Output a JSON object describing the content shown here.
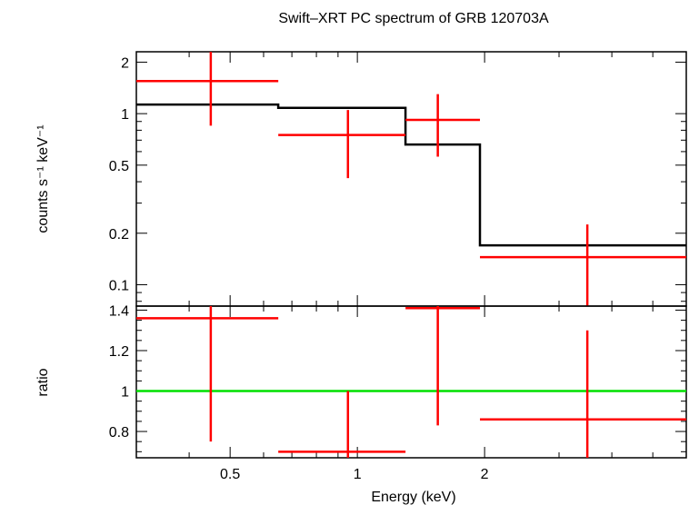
{
  "chart_data": [
    {
      "type": "scatter",
      "title": "Swift–XRT PC spectrum of GRB 120703A",
      "xlabel": "",
      "ylabel": "counts s⁻¹ keV⁻¹",
      "xscale": "log",
      "yscale": "log",
      "xlim": [
        0.3,
        6.0
      ],
      "ylim": [
        0.075,
        2.3
      ],
      "yticks": [
        0.1,
        0.2,
        0.5,
        1,
        2
      ],
      "yticklabels": [
        "0.1",
        "0.2",
        "0.5",
        "1",
        "2"
      ],
      "grid": false,
      "legend": "none",
      "series": [
        {
          "role": "data",
          "color": "#ff0000",
          "points": [
            {
              "x": 0.45,
              "xlo": 0.3,
              "xhi": 0.65,
              "y": 1.55,
              "ylo": 0.85,
              "yhi": 2.3
            },
            {
              "x": 0.95,
              "xlo": 0.65,
              "xhi": 1.3,
              "y": 0.75,
              "ylo": 0.42,
              "yhi": 1.05
            },
            {
              "x": 1.55,
              "xlo": 1.3,
              "xhi": 1.95,
              "y": 0.92,
              "ylo": 0.56,
              "yhi": 1.3
            },
            {
              "x": 3.5,
              "xlo": 1.95,
              "xhi": 6.0,
              "y": 0.145,
              "ylo": 0.075,
              "yhi": 0.225
            }
          ]
        },
        {
          "role": "model",
          "color": "#000000",
          "steps": [
            {
              "xlo": 0.3,
              "xhi": 0.65,
              "y": 1.13
            },
            {
              "xlo": 0.65,
              "xhi": 1.3,
              "y": 1.08
            },
            {
              "xlo": 1.3,
              "xhi": 1.95,
              "y": 0.66
            },
            {
              "xlo": 1.95,
              "xhi": 6.0,
              "y": 0.17
            }
          ]
        }
      ]
    },
    {
      "type": "scatter",
      "title": "",
      "xlabel": "Energy (keV)",
      "ylabel": "ratio",
      "xscale": "log",
      "yscale": "linear",
      "xlim": [
        0.3,
        6.0
      ],
      "ylim": [
        0.67,
        1.42
      ],
      "xticks": [
        0.5,
        1,
        2
      ],
      "xticklabels": [
        "0.5",
        "1",
        "2"
      ],
      "yticks": [
        0.8,
        1,
        1.2,
        1.4
      ],
      "yticklabels": [
        "0.8",
        "1",
        "1.2",
        "1.4"
      ],
      "grid": false,
      "legend": "none",
      "reference_line": {
        "y": 1,
        "color": "#00e000"
      },
      "series": [
        {
          "role": "data",
          "color": "#ff0000",
          "points": [
            {
              "x": 0.45,
              "xlo": 0.3,
              "xhi": 0.65,
              "y": 1.36,
              "ylo": 0.75,
              "yhi": 1.42
            },
            {
              "x": 0.95,
              "xlo": 0.65,
              "xhi": 1.3,
              "y": 0.7,
              "ylo": 0.67,
              "yhi": 1.0
            },
            {
              "x": 1.55,
              "xlo": 1.3,
              "xhi": 1.95,
              "y": 1.41,
              "ylo": 0.83,
              "yhi": 1.42
            },
            {
              "x": 3.5,
              "xlo": 1.95,
              "xhi": 6.0,
              "y": 0.86,
              "ylo": 0.67,
              "yhi": 1.3
            }
          ]
        }
      ]
    }
  ]
}
